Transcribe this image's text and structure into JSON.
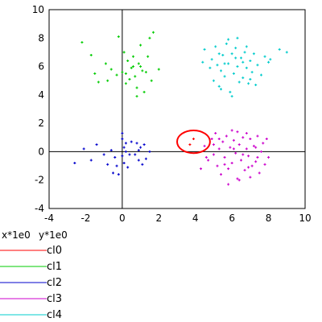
{
  "chart_data": {
    "type": "scatter",
    "xlim": [
      -4,
      10
    ],
    "ylim": [
      -4,
      10
    ],
    "xticks": [
      "-4",
      "-2",
      "0",
      "2",
      "4",
      "6",
      "8",
      "10"
    ],
    "yticks": [
      "-4",
      "-2",
      "0",
      "2",
      "4",
      "6",
      "8",
      "10"
    ],
    "x_scale_label": "x*1e0",
    "y_scale_label": "y*1e0",
    "grid": false,
    "legend_position": "bottom-left",
    "series": [
      {
        "name": "cl0",
        "color": "#ff0000",
        "points": [
          [
            3.9,
            0.9
          ],
          [
            3.7,
            0.5
          ]
        ],
        "circle": {
          "center": [
            3.9,
            0.7
          ],
          "radius_x": 0.9,
          "radius_y": 0.8
        }
      },
      {
        "name": "cl1",
        "color": "#00cc00",
        "points": [
          [
            -2.2,
            7.7
          ],
          [
            -1.7,
            6.8
          ],
          [
            -1.5,
            5.5
          ],
          [
            -1.3,
            4.9
          ],
          [
            -0.9,
            6.2
          ],
          [
            -0.8,
            5.0
          ],
          [
            -0.6,
            5.8
          ],
          [
            -0.3,
            5.4
          ],
          [
            -0.2,
            8.1
          ],
          [
            0.0,
            5.6
          ],
          [
            0.1,
            7.0
          ],
          [
            0.2,
            5.5
          ],
          [
            0.3,
            6.4
          ],
          [
            0.4,
            5.1
          ],
          [
            0.5,
            5.9
          ],
          [
            0.6,
            6.7
          ],
          [
            0.7,
            5.3
          ],
          [
            0.8,
            4.5
          ],
          [
            0.8,
            3.9
          ],
          [
            0.9,
            6.2
          ],
          [
            1.0,
            7.5
          ],
          [
            1.1,
            5.7
          ],
          [
            1.2,
            4.2
          ],
          [
            1.3,
            5.6
          ],
          [
            1.5,
            8.0
          ],
          [
            1.7,
            8.4
          ],
          [
            1.4,
            6.7
          ],
          [
            2.0,
            5.8
          ],
          [
            0.6,
            6.0
          ],
          [
            0.2,
            4.8
          ],
          [
            1.0,
            6.0
          ],
          [
            1.6,
            5.0
          ]
        ]
      },
      {
        "name": "cl2",
        "color": "#0000cc",
        "points": [
          [
            -2.6,
            -0.8
          ],
          [
            -2.1,
            0.2
          ],
          [
            -1.7,
            -0.6
          ],
          [
            -1.4,
            0.5
          ],
          [
            -1.0,
            -0.2
          ],
          [
            -0.8,
            -0.9
          ],
          [
            -0.6,
            0.1
          ],
          [
            -0.5,
            -1.5
          ],
          [
            -0.3,
            -1.0
          ],
          [
            -0.2,
            -1.6
          ],
          [
            0.0,
            1.3
          ],
          [
            0.0,
            0.9
          ],
          [
            0.1,
            0.3
          ],
          [
            0.0,
            -0.3
          ],
          [
            0.1,
            -0.8
          ],
          [
            0.2,
            0.0
          ],
          [
            0.3,
            -1.1
          ],
          [
            0.5,
            0.7
          ],
          [
            0.7,
            -0.2
          ],
          [
            0.8,
            0.6
          ],
          [
            0.9,
            -0.6
          ],
          [
            1.0,
            0.3
          ],
          [
            1.1,
            -0.9
          ],
          [
            1.2,
            0.5
          ],
          [
            1.3,
            -0.5
          ],
          [
            1.5,
            0.0
          ],
          [
            0.2,
            0.6
          ],
          [
            -0.4,
            -0.4
          ],
          [
            0.4,
            -0.2
          ],
          [
            0.9,
            0.1
          ]
        ]
      },
      {
        "name": "cl3",
        "color": "#cc00cc",
        "points": [
          [
            4.3,
            -1.2
          ],
          [
            4.5,
            0.4
          ],
          [
            4.7,
            -0.6
          ],
          [
            4.9,
            0.9
          ],
          [
            5.0,
            -0.2
          ],
          [
            5.1,
            1.3
          ],
          [
            5.2,
            -1.0
          ],
          [
            5.3,
            0.2
          ],
          [
            5.4,
            -1.6
          ],
          [
            5.5,
            0.7
          ],
          [
            5.6,
            -0.4
          ],
          [
            5.7,
            1.1
          ],
          [
            5.8,
            -1.2
          ],
          [
            5.9,
            0.3
          ],
          [
            6.0,
            -0.8
          ],
          [
            6.1,
            0.8
          ],
          [
            6.2,
            -0.1
          ],
          [
            6.3,
            1.4
          ],
          [
            6.3,
            -1.9
          ],
          [
            6.4,
            0.5
          ],
          [
            6.5,
            -0.6
          ],
          [
            6.6,
            1.0
          ],
          [
            6.7,
            -1.3
          ],
          [
            6.8,
            0.2
          ],
          [
            6.9,
            -0.3
          ],
          [
            7.0,
            0.9
          ],
          [
            7.1,
            -1.0
          ],
          [
            7.2,
            0.4
          ],
          [
            7.3,
            -0.7
          ],
          [
            7.4,
            1.1
          ],
          [
            7.5,
            -1.5
          ],
          [
            7.6,
            0.0
          ],
          [
            7.7,
            0.6
          ],
          [
            7.8,
            -0.9
          ],
          [
            8.0,
            -0.4
          ],
          [
            5.8,
            -2.3
          ],
          [
            6.4,
            -2.0
          ],
          [
            7.0,
            -1.8
          ],
          [
            6.0,
            1.5
          ],
          [
            5.3,
            0.9
          ],
          [
            6.8,
            1.3
          ],
          [
            7.9,
            0.9
          ],
          [
            4.6,
            -0.4
          ],
          [
            5.6,
            -0.9
          ],
          [
            6.6,
            -0.2
          ],
          [
            7.3,
            0.3
          ],
          [
            6.1,
            0.2
          ],
          [
            5.0,
            0.5
          ],
          [
            6.9,
            -1.1
          ],
          [
            7.4,
            -0.4
          ]
        ]
      },
      {
        "name": "cl4",
        "color": "#00cccc",
        "points": [
          [
            4.4,
            6.3
          ],
          [
            4.5,
            7.2
          ],
          [
            4.8,
            5.9
          ],
          [
            4.9,
            6.5
          ],
          [
            5.0,
            5.0
          ],
          [
            5.1,
            7.4
          ],
          [
            5.2,
            6.1
          ],
          [
            5.3,
            4.6
          ],
          [
            5.4,
            5.7
          ],
          [
            5.5,
            6.8
          ],
          [
            5.6,
            5.3
          ],
          [
            5.7,
            7.6
          ],
          [
            5.8,
            6.2
          ],
          [
            5.9,
            4.2
          ],
          [
            6.0,
            6.9
          ],
          [
            6.1,
            5.5
          ],
          [
            6.2,
            7.3
          ],
          [
            6.3,
            6.0
          ],
          [
            6.4,
            4.9
          ],
          [
            6.5,
            6.6
          ],
          [
            6.6,
            5.2
          ],
          [
            6.7,
            7.0
          ],
          [
            6.8,
            5.9
          ],
          [
            6.9,
            4.8
          ],
          [
            7.0,
            6.4
          ],
          [
            7.1,
            5.6
          ],
          [
            7.2,
            6.9
          ],
          [
            7.3,
            4.7
          ],
          [
            7.4,
            6.1
          ],
          [
            7.6,
            5.4
          ],
          [
            7.8,
            6.7
          ],
          [
            8.0,
            6.3
          ],
          [
            8.1,
            6.5
          ],
          [
            8.6,
            7.2
          ],
          [
            9.0,
            7.0
          ],
          [
            5.8,
            7.9
          ],
          [
            6.3,
            8.0
          ],
          [
            6.0,
            3.9
          ],
          [
            5.4,
            4.4
          ],
          [
            5.6,
            6.2
          ],
          [
            6.6,
            6.3
          ],
          [
            7.0,
            5.1
          ],
          [
            6.2,
            6.6
          ],
          [
            5.3,
            6.9
          ],
          [
            6.8,
            7.4
          ]
        ]
      }
    ]
  }
}
